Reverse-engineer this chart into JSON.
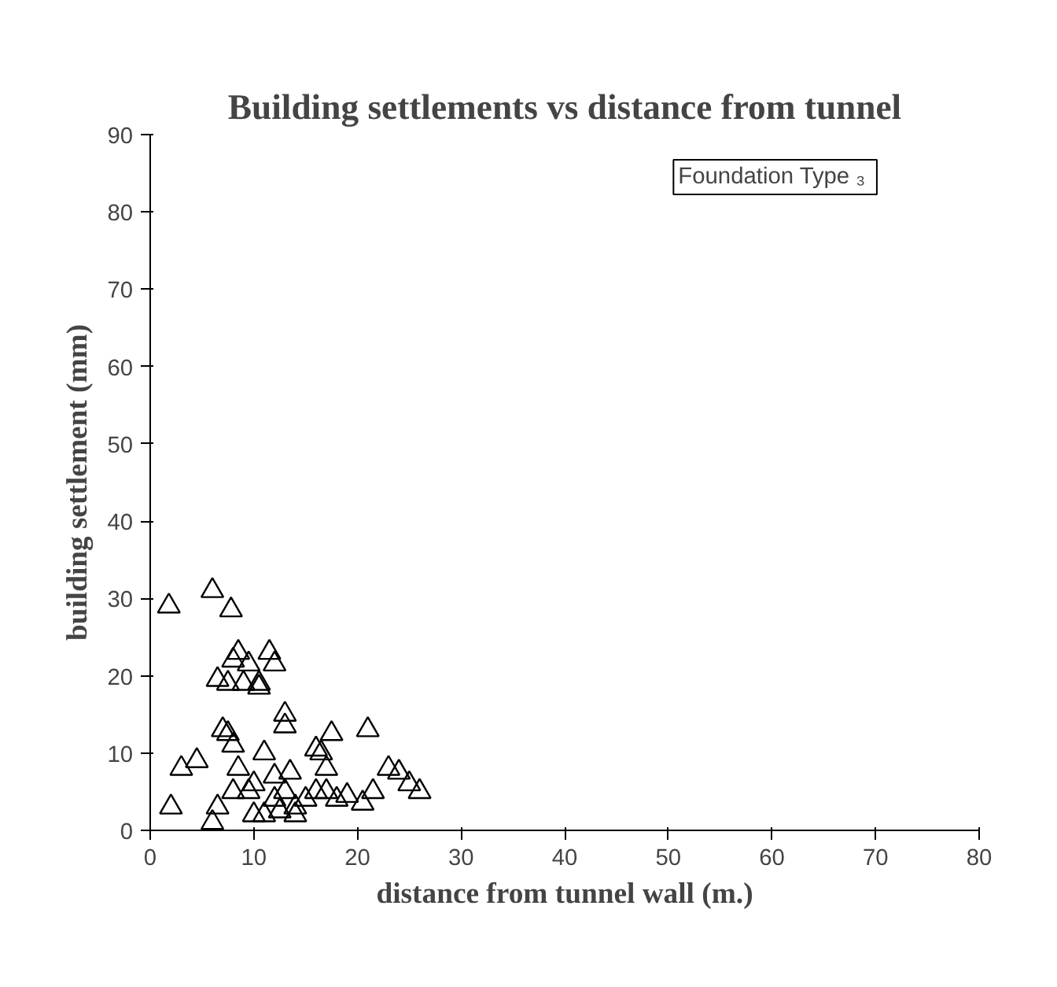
{
  "chart_data": {
    "type": "scatter",
    "title": "Building settlements vs distance from tunnel",
    "xlabel": "distance from tunnel wall (m.)",
    "ylabel": "building settlement (mm)",
    "annotations": [
      "Foundation Type ₃"
    ],
    "marker": "triangle",
    "grid": false,
    "xlim": [
      0,
      80
    ],
    "ylim": [
      0,
      90
    ],
    "xticks": [
      0,
      10,
      20,
      30,
      40,
      50,
      60,
      70,
      80
    ],
    "yticks": [
      0,
      10,
      20,
      30,
      40,
      50,
      60,
      70,
      80,
      90
    ],
    "series": [
      {
        "color": "#000000",
        "x": [
          1.8,
          6,
          7.8,
          2,
          3,
          4.5,
          6,
          6.5,
          6.5,
          7,
          7.5,
          7.5,
          8,
          8,
          8,
          8.5,
          8.5,
          9,
          9.5,
          9.5,
          10,
          10,
          10.5,
          10.5,
          11,
          11,
          11.5,
          12,
          12,
          12,
          12.5,
          13,
          13,
          13,
          13.5,
          14,
          14,
          15,
          16,
          16.5,
          16,
          17,
          17,
          17.5,
          18,
          19,
          20.5,
          21,
          21.5,
          23,
          24,
          25,
          26
        ],
        "values": [
          29,
          31,
          28.5,
          3,
          8,
          9,
          1,
          3,
          19.5,
          13,
          12.5,
          19,
          22,
          11,
          5,
          23,
          8,
          19,
          21.5,
          5,
          6,
          2,
          19,
          18.5,
          2,
          10,
          23,
          21.5,
          7,
          4,
          2.5,
          15,
          13.5,
          5,
          7.5,
          3,
          2,
          4,
          10.5,
          10,
          5,
          8,
          5,
          12.5,
          4,
          4.5,
          3.5,
          13,
          5,
          8,
          7.5,
          6,
          5
        ]
      }
    ]
  }
}
